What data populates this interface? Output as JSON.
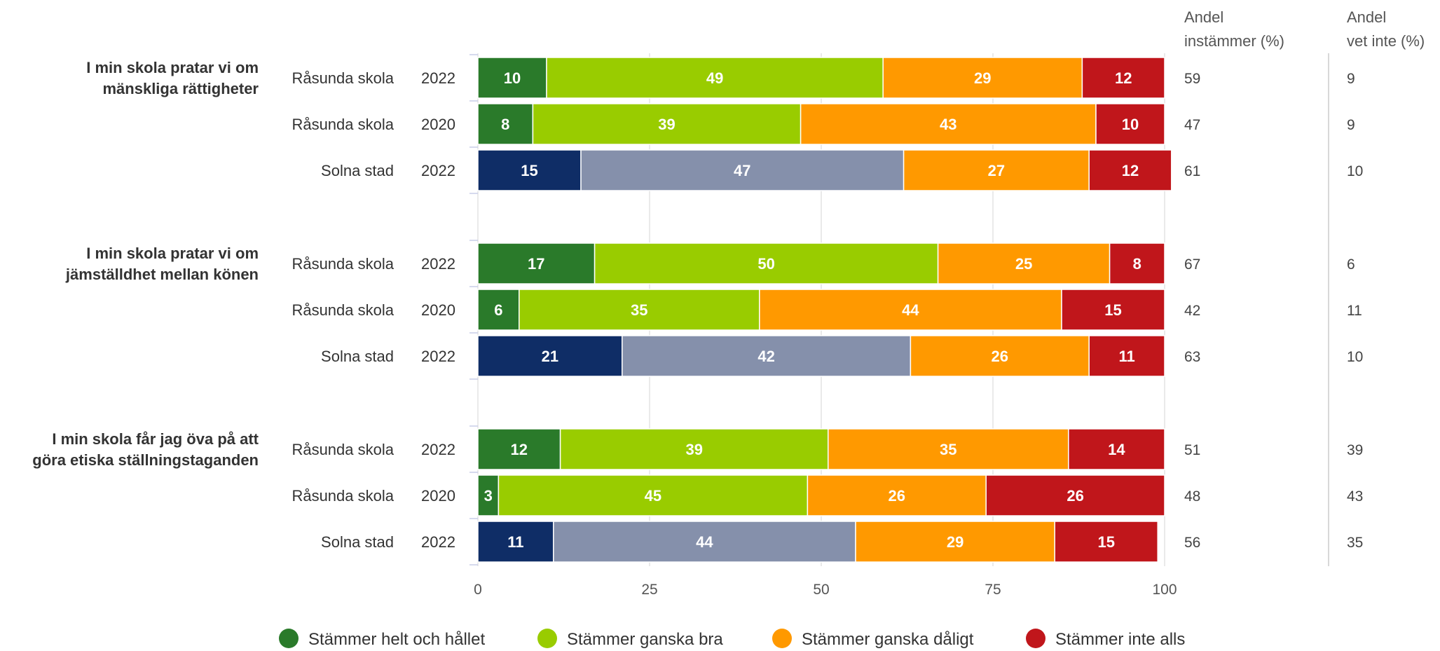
{
  "chart_data": {
    "type": "bar",
    "orientation": "horizontal",
    "stacked": true,
    "xlim": [
      0,
      100
    ],
    "xticks": [
      "0",
      "25",
      "50",
      "75",
      "100"
    ],
    "grid": true,
    "legend_position": "bottom",
    "series": [
      {
        "name": "Stämmer helt och hållet",
        "color": "#2a7a2a"
      },
      {
        "name": "Stämmer ganska bra",
        "color": "#99cc00"
      },
      {
        "name": "Stämmer ganska dåligt",
        "color": "#ff9900"
      },
      {
        "name": "Stämmer inte alls",
        "color": "#c0161b"
      }
    ],
    "comparison_colors": {
      "helt": "#0f2d66",
      "ganska_bra": "#8590ab"
    },
    "side_columns": [
      {
        "header_line1": "Andel",
        "header_line2": "instämmer (%)"
      },
      {
        "header_line1": "Andel",
        "header_line2": "vet inte (%)"
      }
    ],
    "groups": [
      {
        "question_lines": [
          "I min skola pratar vi om",
          "mänskliga rättigheter"
        ],
        "rows": [
          {
            "label": "Råsunda skola",
            "year": "2022",
            "comparison": false,
            "values": [
              10,
              49,
              29,
              12
            ],
            "instammer": "59",
            "vet_inte": "9"
          },
          {
            "label": "Råsunda skola",
            "year": "2020",
            "comparison": false,
            "values": [
              8,
              39,
              43,
              10
            ],
            "instammer": "47",
            "vet_inte": "9"
          },
          {
            "label": "Solna stad",
            "year": "2022",
            "comparison": true,
            "values": [
              15,
              47,
              27,
              12
            ],
            "instammer": "61",
            "vet_inte": "10"
          }
        ]
      },
      {
        "question_lines": [
          "I min skola pratar vi om",
          "jämställdhet mellan könen"
        ],
        "rows": [
          {
            "label": "Råsunda skola",
            "year": "2022",
            "comparison": false,
            "values": [
              17,
              50,
              25,
              8
            ],
            "instammer": "67",
            "vet_inte": "6"
          },
          {
            "label": "Råsunda skola",
            "year": "2020",
            "comparison": false,
            "values": [
              6,
              35,
              44,
              15
            ],
            "instammer": "42",
            "vet_inte": "11"
          },
          {
            "label": "Solna stad",
            "year": "2022",
            "comparison": true,
            "values": [
              21,
              42,
              26,
              11
            ],
            "instammer": "63",
            "vet_inte": "10"
          }
        ]
      },
      {
        "question_lines": [
          "I min skola får jag öva på att",
          "göra etiska ställningstaganden"
        ],
        "rows": [
          {
            "label": "Råsunda skola",
            "year": "2022",
            "comparison": false,
            "values": [
              12,
              39,
              35,
              14
            ],
            "instammer": "51",
            "vet_inte": "39"
          },
          {
            "label": "Råsunda skola",
            "year": "2020",
            "comparison": false,
            "values": [
              3,
              45,
              26,
              26
            ],
            "instammer": "48",
            "vet_inte": "43"
          },
          {
            "label": "Solna stad",
            "year": "2022",
            "comparison": true,
            "values": [
              11,
              44,
              29,
              15
            ],
            "instammer": "56",
            "vet_inte": "35"
          }
        ]
      }
    ]
  }
}
